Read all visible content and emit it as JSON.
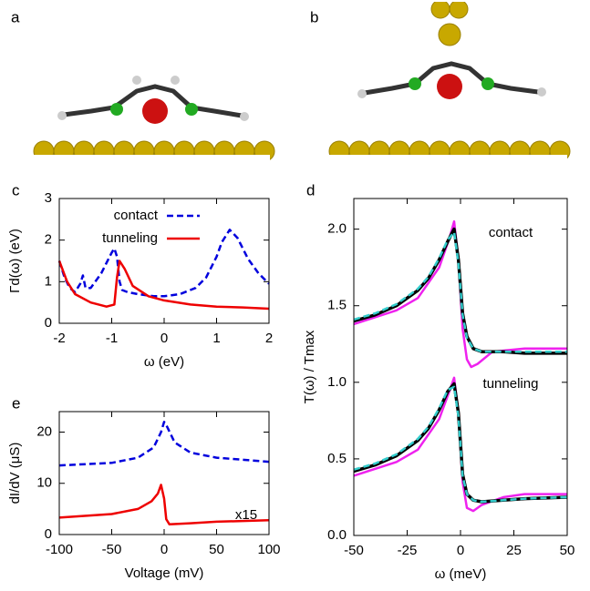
{
  "panel_labels": [
    "a",
    "b"
  ],
  "chart_data": [
    {
      "type": "line",
      "panel_label": "c",
      "xlabel": "ω (eV)",
      "ylabel": "Γd(ω) (eV)",
      "xlim": [
        -2,
        2
      ],
      "xticks": [
        -2,
        -1,
        0,
        1,
        2
      ],
      "ylim": [
        0,
        3
      ],
      "yticks": [
        0,
        1,
        2,
        3
      ],
      "legend": "upper right",
      "series": [
        {
          "name": "contact",
          "color": "#0000dd",
          "style": "dashed",
          "x": [
            -2,
            -1.9,
            -1.8,
            -1.7,
            -1.6,
            -1.55,
            -1.5,
            -1.4,
            -1.2,
            -1.0,
            -0.95,
            -0.9,
            -0.85,
            -0.8,
            -0.7,
            -0.5,
            -0.2,
            0,
            0.3,
            0.6,
            0.8,
            1.0,
            1.1,
            1.25,
            1.4,
            1.6,
            1.8,
            2.0
          ],
          "values": [
            1.5,
            1.1,
            0.85,
            0.75,
            0.95,
            1.15,
            0.85,
            0.85,
            1.2,
            1.7,
            1.8,
            1.6,
            1.0,
            0.8,
            0.75,
            0.7,
            0.65,
            0.65,
            0.7,
            0.85,
            1.1,
            1.6,
            1.95,
            2.25,
            2.05,
            1.55,
            1.2,
            0.95
          ]
        },
        {
          "name": "tunneling",
          "color": "#ee0000",
          "style": "solid",
          "x": [
            -2,
            -1.85,
            -1.7,
            -1.4,
            -1.1,
            -0.95,
            -0.9,
            -0.85,
            -0.75,
            -0.6,
            -0.3,
            0,
            0.5,
            1.0,
            1.5,
            2.0
          ],
          "values": [
            1.5,
            1.0,
            0.7,
            0.5,
            0.4,
            0.45,
            1.1,
            1.5,
            1.3,
            0.9,
            0.65,
            0.55,
            0.45,
            0.4,
            0.38,
            0.35
          ]
        }
      ]
    },
    {
      "type": "line",
      "panel_label": "e",
      "xlabel": "Voltage (mV)",
      "ylabel": "dI/dV (μS)",
      "xlim": [
        -100,
        100
      ],
      "xticks": [
        -100,
        -50,
        0,
        50,
        100
      ],
      "ylim": [
        0,
        24
      ],
      "yticks": [
        0,
        10,
        20
      ],
      "annotations": [
        "x15"
      ],
      "series": [
        {
          "color": "#0000dd",
          "style": "dashed",
          "x": [
            -100,
            -50,
            -25,
            -10,
            -3,
            0,
            3,
            10,
            25,
            50,
            100
          ],
          "values": [
            13.5,
            14,
            15,
            17,
            20,
            22,
            21,
            18,
            16,
            15,
            14.2
          ]
        },
        {
          "color": "#ee0000",
          "style": "solid",
          "x": [
            -100,
            -50,
            -25,
            -12,
            -6,
            -3,
            0,
            2,
            5,
            25,
            50,
            100
          ],
          "values": [
            3.3,
            4,
            5,
            6.5,
            8,
            9.7,
            7,
            3,
            2,
            2.2,
            2.5,
            2.8
          ]
        }
      ]
    },
    {
      "type": "line",
      "panel_label": "d",
      "xlabel": "ω (meV)",
      "ylabel": "T(ω) / Tmax",
      "xlim": [
        -50,
        50
      ],
      "xticks": [
        -50,
        -25,
        0,
        25,
        50
      ],
      "ylim": [
        0,
        2.2
      ],
      "yticks": [
        {
          "value": 0,
          "label": "0.0"
        },
        {
          "value": 0.5,
          "label": "0.5"
        },
        {
          "value": 1,
          "label": "1.0"
        },
        {
          "value": 1.5,
          "label": "1.5"
        },
        {
          "value": 2,
          "label": "2.0"
        }
      ],
      "annotations": [
        "contact",
        "tunneling"
      ],
      "series": [
        {
          "color": "#ee22ee",
          "style": "solid",
          "x": [
            -50,
            -30,
            -20,
            -10,
            -5,
            -3,
            -1,
            1,
            3,
            5,
            8,
            15,
            30,
            50
          ],
          "values": [
            1.38,
            1.47,
            1.55,
            1.75,
            1.95,
            2.05,
            1.8,
            1.35,
            1.15,
            1.1,
            1.12,
            1.2,
            1.22,
            1.22
          ]
        },
        {
          "color": "#000000",
          "style": "thick",
          "x": [
            -50,
            -40,
            -30,
            -20,
            -15,
            -10,
            -6,
            -3,
            -1,
            1,
            3,
            6,
            10,
            20,
            30,
            50
          ],
          "values": [
            1.4,
            1.44,
            1.5,
            1.6,
            1.68,
            1.8,
            1.92,
            2.0,
            1.8,
            1.45,
            1.3,
            1.22,
            1.2,
            1.2,
            1.19,
            1.19
          ]
        },
        {
          "color": "#33cccc",
          "style": "dashed",
          "x": [
            -50,
            -40,
            -30,
            -20,
            -15,
            -10,
            -6,
            -3,
            -1,
            1,
            3,
            6,
            10,
            20,
            30,
            50
          ],
          "values": [
            1.41,
            1.45,
            1.51,
            1.61,
            1.69,
            1.81,
            1.93,
            1.98,
            1.78,
            1.44,
            1.29,
            1.22,
            1.2,
            1.2,
            1.2,
            1.2
          ]
        },
        {
          "color": "#ee22ee",
          "style": "solid",
          "x": [
            -50,
            -30,
            -20,
            -10,
            -5,
            -3,
            -1,
            1,
            3,
            6,
            10,
            20,
            30,
            50
          ],
          "values": [
            0.39,
            0.48,
            0.56,
            0.76,
            0.95,
            1.03,
            0.8,
            0.35,
            0.18,
            0.16,
            0.2,
            0.25,
            0.27,
            0.27
          ]
        },
        {
          "color": "#000000",
          "style": "thick",
          "x": [
            -50,
            -40,
            -30,
            -20,
            -15,
            -10,
            -6,
            -3,
            -1,
            1,
            3,
            6,
            10,
            20,
            30,
            50
          ],
          "values": [
            0.42,
            0.46,
            0.52,
            0.62,
            0.7,
            0.82,
            0.94,
            0.99,
            0.8,
            0.4,
            0.27,
            0.23,
            0.22,
            0.23,
            0.24,
            0.25
          ]
        },
        {
          "color": "#33cccc",
          "style": "dashed",
          "x": [
            -50,
            -40,
            -30,
            -20,
            -15,
            -10,
            -6,
            -3,
            -1,
            1,
            3,
            6,
            10,
            20,
            30,
            50
          ],
          "values": [
            0.43,
            0.47,
            0.53,
            0.63,
            0.71,
            0.83,
            0.95,
            0.97,
            0.78,
            0.39,
            0.27,
            0.23,
            0.22,
            0.23,
            0.24,
            0.25
          ]
        }
      ]
    }
  ]
}
